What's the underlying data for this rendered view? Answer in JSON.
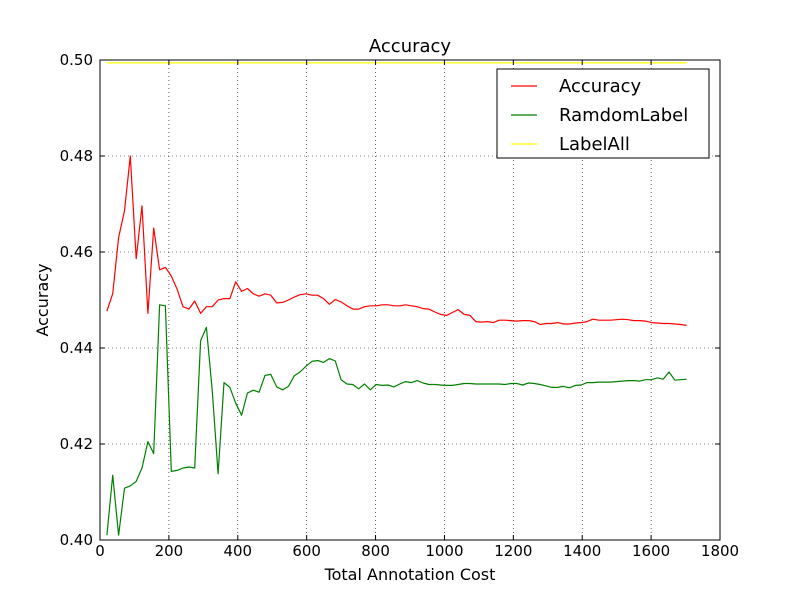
{
  "chart_data": {
    "type": "line",
    "title": "Accuracy",
    "xlabel": "Total Annotation Cost",
    "ylabel": "Accuracy",
    "xlim": [
      0,
      1800
    ],
    "ylim": [
      0.4,
      0.5
    ],
    "xticks": [
      0,
      200,
      400,
      600,
      800,
      1000,
      1200,
      1400,
      1600,
      1800
    ],
    "xtick_labels": [
      "0",
      "200",
      "400",
      "600",
      "800",
      "1000",
      "1200",
      "1400",
      "1600",
      "1800"
    ],
    "yticks": [
      0.4,
      0.42,
      0.44,
      0.46,
      0.48,
      0.5
    ],
    "ytick_labels": [
      "0.40",
      "0.42",
      "0.44",
      "0.46",
      "0.48",
      "0.50"
    ],
    "grid": true,
    "legend_position": "top-right",
    "series": [
      {
        "name": "Accuracy",
        "color": "#ff0000",
        "x": [
          20,
          37,
          54,
          71,
          88,
          105,
          122,
          139,
          156,
          173,
          190,
          207,
          224,
          241,
          258,
          275,
          292,
          309,
          326,
          343,
          360,
          377,
          394,
          411,
          428,
          445,
          462,
          479,
          496,
          513,
          530,
          547,
          564,
          581,
          598,
          615,
          632,
          649,
          666,
          683,
          700,
          717,
          734,
          751,
          768,
          785,
          802,
          819,
          836,
          853,
          870,
          887,
          904,
          921,
          938,
          955,
          972,
          989,
          1006,
          1023,
          1040,
          1057,
          1074,
          1091,
          1108,
          1125,
          1142,
          1159,
          1176,
          1193,
          1210,
          1227,
          1244,
          1261,
          1278,
          1295,
          1312,
          1329,
          1346,
          1363,
          1380,
          1397,
          1414,
          1431,
          1448,
          1465,
          1482,
          1499,
          1516,
          1533,
          1550,
          1567,
          1584,
          1601,
          1618,
          1635,
          1652,
          1669,
          1686,
          1703
        ],
        "y": [
          0.4477,
          0.4513,
          0.463,
          0.4686,
          0.48,
          0.4586,
          0.4696,
          0.4472,
          0.465,
          0.4563,
          0.4568,
          0.455,
          0.4522,
          0.4486,
          0.4481,
          0.4498,
          0.4472,
          0.4486,
          0.4486,
          0.45,
          0.4503,
          0.4503,
          0.4538,
          0.4518,
          0.4524,
          0.4513,
          0.4508,
          0.4513,
          0.451,
          0.4494,
          0.4495,
          0.45,
          0.4506,
          0.4511,
          0.4513,
          0.451,
          0.451,
          0.4503,
          0.4491,
          0.4501,
          0.4496,
          0.4488,
          0.4481,
          0.4481,
          0.4486,
          0.4488,
          0.4488,
          0.449,
          0.449,
          0.4488,
          0.4488,
          0.449,
          0.4488,
          0.4486,
          0.4482,
          0.4481,
          0.4475,
          0.447,
          0.4468,
          0.4474,
          0.448,
          0.447,
          0.4468,
          0.4455,
          0.4454,
          0.4455,
          0.4453,
          0.4458,
          0.4458,
          0.4457,
          0.4456,
          0.4457,
          0.4457,
          0.4455,
          0.4449,
          0.4451,
          0.4451,
          0.4453,
          0.445,
          0.445,
          0.4452,
          0.4453,
          0.4455,
          0.446,
          0.4458,
          0.4458,
          0.4458,
          0.4459,
          0.446,
          0.4459,
          0.4457,
          0.4457,
          0.4456,
          0.4453,
          0.4452,
          0.4451,
          0.4451,
          0.445,
          0.4449,
          0.4447
        ]
      },
      {
        "name": "RamdomLabel",
        "color": "#008000",
        "x": [
          20,
          37,
          54,
          71,
          88,
          105,
          122,
          139,
          156,
          173,
          190,
          207,
          224,
          241,
          258,
          275,
          292,
          309,
          326,
          343,
          360,
          377,
          394,
          411,
          428,
          445,
          462,
          479,
          496,
          513,
          530,
          547,
          564,
          581,
          598,
          615,
          632,
          649,
          666,
          683,
          700,
          717,
          734,
          751,
          768,
          785,
          802,
          819,
          836,
          853,
          870,
          887,
          904,
          921,
          938,
          955,
          972,
          989,
          1006,
          1023,
          1040,
          1057,
          1074,
          1091,
          1108,
          1125,
          1142,
          1159,
          1176,
          1193,
          1210,
          1227,
          1244,
          1261,
          1278,
          1295,
          1312,
          1329,
          1346,
          1363,
          1380,
          1397,
          1414,
          1431,
          1448,
          1465,
          1482,
          1499,
          1516,
          1533,
          1550,
          1567,
          1584,
          1601,
          1618,
          1635,
          1652,
          1669,
          1686,
          1703
        ],
        "y": [
          0.401,
          0.4135,
          0.401,
          0.4108,
          0.4113,
          0.4122,
          0.415,
          0.4205,
          0.418,
          0.449,
          0.4488,
          0.4143,
          0.4145,
          0.415,
          0.4152,
          0.415,
          0.4415,
          0.4443,
          0.431,
          0.4138,
          0.4328,
          0.4318,
          0.4285,
          0.426,
          0.4306,
          0.4312,
          0.4308,
          0.4343,
          0.4345,
          0.4319,
          0.4313,
          0.432,
          0.4342,
          0.435,
          0.4362,
          0.4372,
          0.4374,
          0.437,
          0.4378,
          0.4373,
          0.4334,
          0.4325,
          0.4324,
          0.4315,
          0.4325,
          0.4313,
          0.4324,
          0.4322,
          0.4323,
          0.4319,
          0.4325,
          0.433,
          0.4328,
          0.4332,
          0.4327,
          0.4324,
          0.4324,
          0.4323,
          0.4322,
          0.4322,
          0.4324,
          0.4326,
          0.4326,
          0.4325,
          0.4325,
          0.4325,
          0.4325,
          0.4325,
          0.4324,
          0.4326,
          0.4326,
          0.4323,
          0.4327,
          0.4326,
          0.4324,
          0.4321,
          0.4318,
          0.4318,
          0.432,
          0.4317,
          0.4322,
          0.4323,
          0.4328,
          0.4328,
          0.4329,
          0.4329,
          0.4329,
          0.433,
          0.4331,
          0.4332,
          0.4332,
          0.4331,
          0.4334,
          0.4334,
          0.4338,
          0.4335,
          0.435,
          0.4333,
          0.4334,
          0.4335
        ]
      },
      {
        "name": "LabelAll",
        "color": "#ffff00",
        "x": [
          20,
          1703
        ],
        "y": [
          0.4994,
          0.4994
        ]
      }
    ]
  }
}
